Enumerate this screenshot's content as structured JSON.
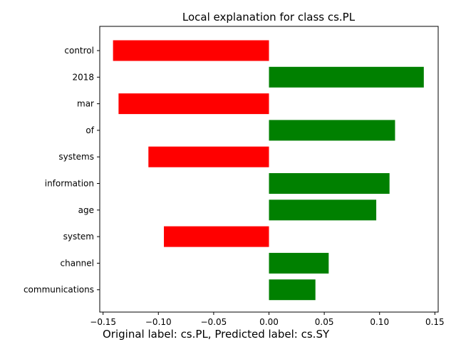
{
  "chart_data": {
    "type": "bar",
    "orientation": "horizontal",
    "title": "Local explanation for class cs.PL",
    "caption": "Original label: cs.PL, Predicted label: cs.SY",
    "xlabel": "",
    "ylabel": "",
    "xlim": [
      -0.153,
      0.153
    ],
    "xticks": [
      -0.15,
      -0.1,
      -0.05,
      0.0,
      0.05,
      0.1,
      0.15
    ],
    "xtick_labels": [
      "−0.15",
      "−0.10",
      "−0.05",
      "0.00",
      "0.05",
      "0.10",
      "0.15"
    ],
    "categories": [
      "control",
      "2018",
      "mar",
      "of",
      "systems",
      "information",
      "age",
      "system",
      "channel",
      "communications"
    ],
    "values": [
      -0.141,
      0.14,
      -0.136,
      0.114,
      -0.109,
      0.109,
      0.097,
      -0.095,
      0.054,
      0.042
    ],
    "grid": false,
    "legend": "none",
    "colors": {
      "positive": "#008000",
      "negative": "#ff0000"
    }
  }
}
